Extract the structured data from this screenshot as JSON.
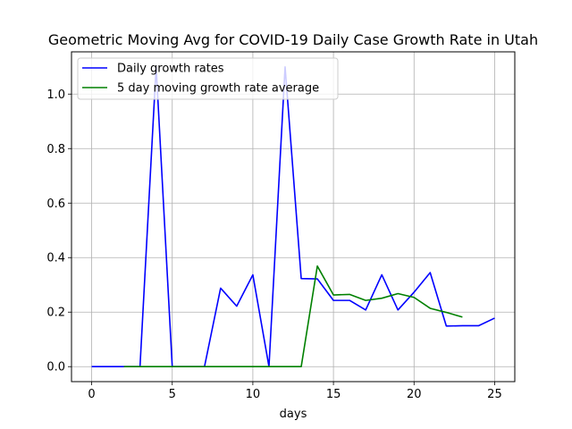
{
  "chart_data": {
    "type": "line",
    "title": "Geometric Moving Avg for COVID-19 Daily Case Growth Rate in Utah",
    "xlabel": "days",
    "ylabel": "",
    "xlim": [
      -1.25,
      26.25
    ],
    "ylim": [
      -0.055,
      1.155
    ],
    "xticks": [
      0,
      5,
      10,
      15,
      20,
      25
    ],
    "yticks": [
      0.0,
      0.2,
      0.4,
      0.6,
      0.8,
      1.0
    ],
    "xtick_labels": [
      "0",
      "5",
      "10",
      "15",
      "20",
      "25"
    ],
    "ytick_labels": [
      "0.0",
      "0.2",
      "0.4",
      "0.6",
      "0.8",
      "1.0"
    ],
    "grid": true,
    "legend_position": "top-left",
    "series": [
      {
        "name": "Daily growth rates",
        "color": "#0000ff",
        "x": [
          0,
          1,
          2,
          3,
          4,
          5,
          6,
          7,
          8,
          9,
          10,
          11,
          12,
          13,
          14,
          15,
          16,
          17,
          18,
          19,
          20,
          21,
          22,
          23,
          24,
          25
        ],
        "values": [
          0.0,
          0.0,
          0.0,
          0.0,
          1.1,
          0.0,
          0.0,
          0.0,
          0.288,
          0.222,
          0.337,
          0.0,
          1.1,
          0.323,
          0.322,
          0.243,
          0.243,
          0.208,
          0.337,
          0.208,
          0.273,
          0.345,
          0.149,
          0.15,
          0.15,
          0.178
        ]
      },
      {
        "name": "5 day moving growth rate average",
        "color": "#008000",
        "x": [
          2,
          3,
          4,
          5,
          6,
          7,
          8,
          9,
          10,
          11,
          12,
          13,
          14,
          15,
          16,
          17,
          18,
          19,
          20,
          21,
          22,
          23
        ],
        "values": [
          0.0,
          0.0,
          0.0,
          0.0,
          0.0,
          0.0,
          0.0,
          0.0,
          0.0,
          0.0,
          0.0,
          0.0,
          0.369,
          0.263,
          0.265,
          0.243,
          0.251,
          0.268,
          0.254,
          0.214,
          0.199,
          0.182
        ]
      }
    ]
  }
}
